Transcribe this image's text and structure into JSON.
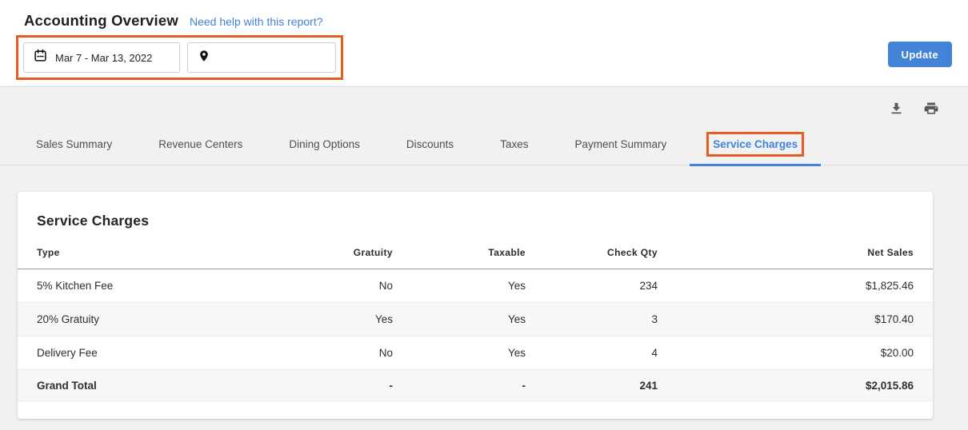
{
  "header": {
    "title": "Accounting Overview",
    "help_link": "Need help with this report?",
    "update_label": "Update"
  },
  "filters": {
    "date_range": "Mar 7 - Mar 13, 2022",
    "location_value": "",
    "icons": {
      "date": "calendar-icon",
      "location": "location-pin-icon"
    }
  },
  "doc_actions": {
    "icons": [
      "download-icon",
      "print-icon"
    ]
  },
  "tabs": {
    "items": [
      {
        "label": "Sales Summary",
        "active": false,
        "annotated": false
      },
      {
        "label": "Revenue Centers",
        "active": false,
        "annotated": false
      },
      {
        "label": "Dining Options",
        "active": false,
        "annotated": false
      },
      {
        "label": "Discounts",
        "active": false,
        "annotated": false
      },
      {
        "label": "Taxes",
        "active": false,
        "annotated": false
      },
      {
        "label": "Payment Summary",
        "active": false,
        "annotated": false
      },
      {
        "label": "Service Charges",
        "active": true,
        "annotated": true
      }
    ]
  },
  "report": {
    "title": "Service Charges",
    "columns": [
      "Type",
      "Gratuity",
      "Taxable",
      "Check Qty",
      "Net Sales"
    ],
    "rows": [
      [
        "5% Kitchen Fee",
        "No",
        "Yes",
        "234",
        "$1,825.46"
      ],
      [
        "20% Gratuity",
        "Yes",
        "Yes",
        "3",
        "$170.40"
      ],
      [
        "Delivery Fee",
        "No",
        "Yes",
        "4",
        "$20.00"
      ]
    ],
    "grand_total": [
      "Grand Total",
      "-",
      "-",
      "241",
      "$2,015.86"
    ]
  },
  "colors": {
    "accent_blue": "#4283d8",
    "annotation_orange": "#e65c23"
  }
}
